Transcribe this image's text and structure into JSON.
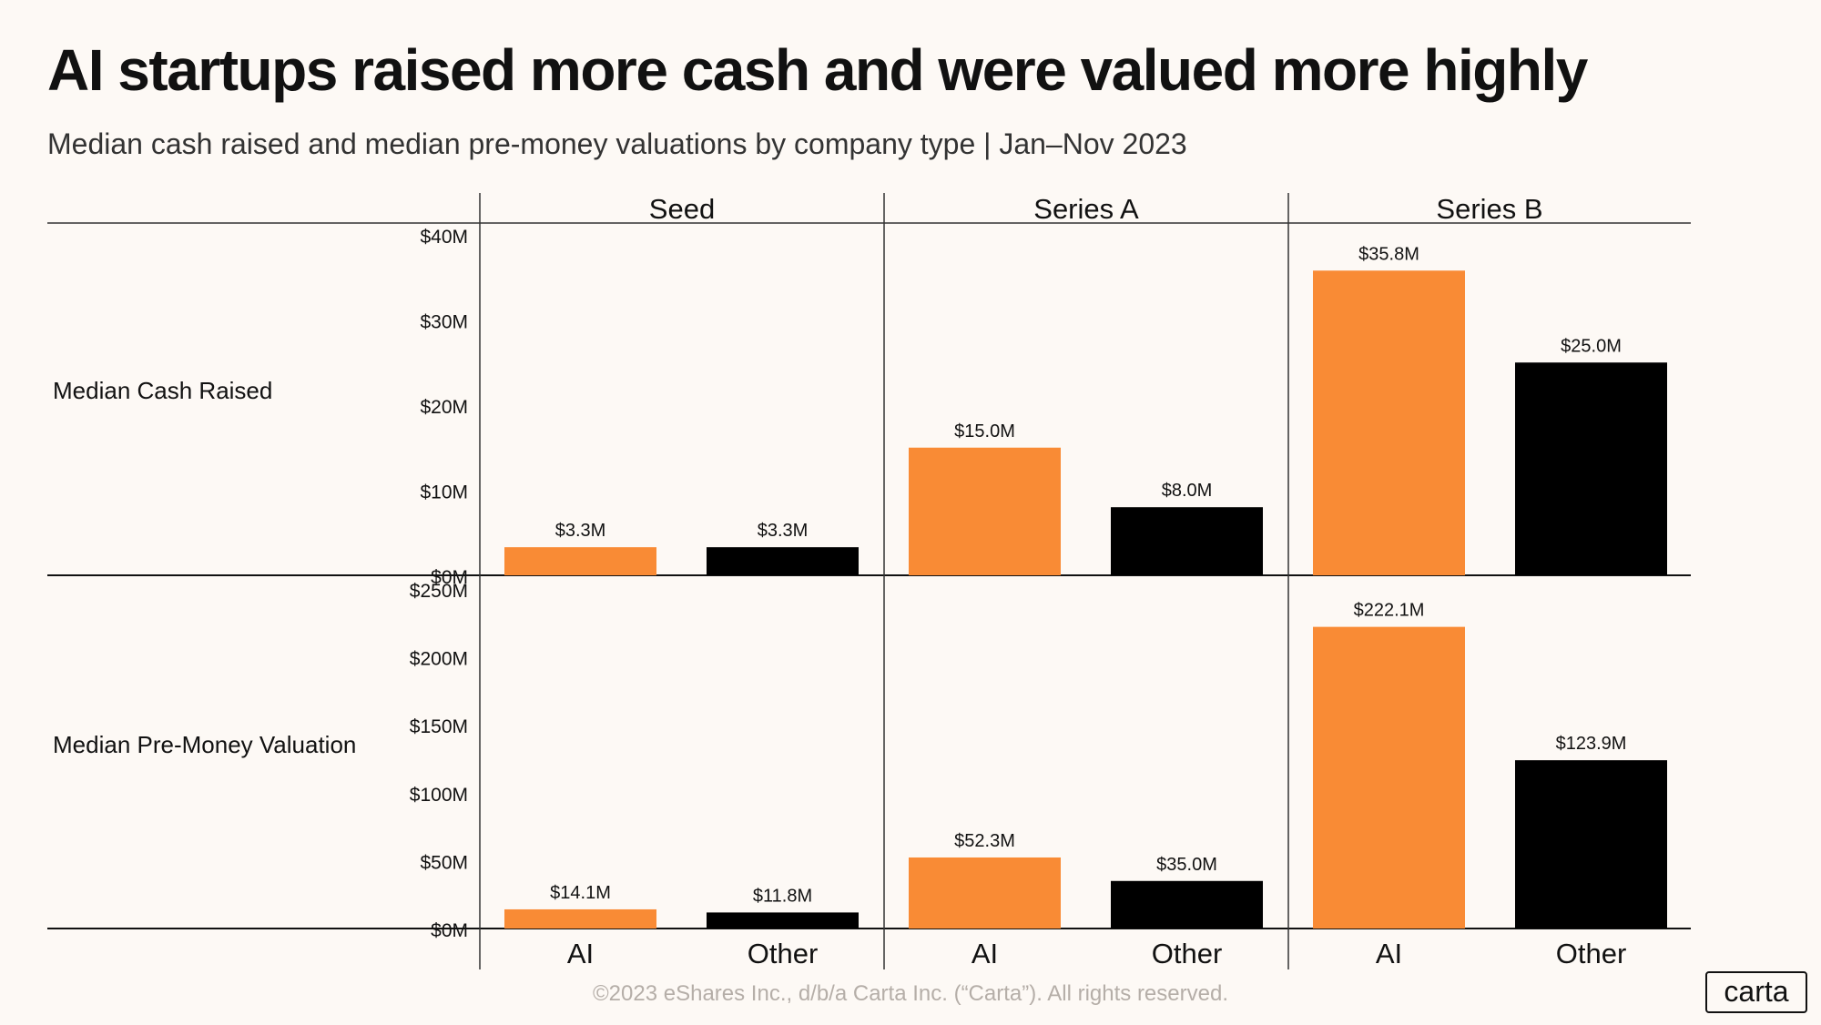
{
  "title": "AI startups raised more cash and were valued more highly",
  "subtitle": "Median cash raised and median pre-money valuations by company type  |  Jan–Nov 2023",
  "footer": "©2023 eShares Inc., d/b/a Carta Inc. (“Carta”). All rights reserved.",
  "logo": "carta",
  "colors": {
    "ai": "#f98b35",
    "other": "#000000"
  },
  "chart_data": {
    "type": "bar",
    "stages": [
      "Seed",
      "Series A",
      "Series B"
    ],
    "categories": [
      "AI",
      "Other"
    ],
    "rows": [
      {
        "name": "Median Cash Raised",
        "ylim": [
          0,
          40
        ],
        "ticks": [
          {
            "v": 0,
            "label": "$0M"
          },
          {
            "v": 10,
            "label": "$10M"
          },
          {
            "v": 20,
            "label": "$20M"
          },
          {
            "v": 30,
            "label": "$30M"
          },
          {
            "v": 40,
            "label": "$40M"
          }
        ],
        "values": [
          [
            3.3,
            3.3
          ],
          [
            15.0,
            8.0
          ],
          [
            35.8,
            25.0
          ]
        ],
        "labels": [
          [
            "$3.3M",
            "$3.3M"
          ],
          [
            "$15.0M",
            "$8.0M"
          ],
          [
            "$35.8M",
            "$25.0M"
          ]
        ]
      },
      {
        "name": "Median Pre-Money Valuation",
        "ylim": [
          0,
          250
        ],
        "ticks": [
          {
            "v": 0,
            "label": "$0M"
          },
          {
            "v": 50,
            "label": "$50M"
          },
          {
            "v": 100,
            "label": "$100M"
          },
          {
            "v": 150,
            "label": "$150M"
          },
          {
            "v": 200,
            "label": "$200M"
          },
          {
            "v": 250,
            "label": "$250M"
          }
        ],
        "values": [
          [
            14.1,
            11.8
          ],
          [
            52.3,
            35.0
          ],
          [
            222.1,
            123.9
          ]
        ],
        "labels": [
          [
            "$14.1M",
            "$11.8M"
          ],
          [
            "$52.3M",
            "$35.0M"
          ],
          [
            "$222.1M",
            "$123.9M"
          ]
        ]
      }
    ]
  }
}
